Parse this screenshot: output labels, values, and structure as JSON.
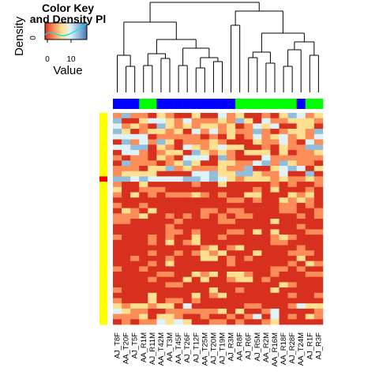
{
  "chart_data": {
    "type": "heatmap",
    "title": "",
    "color_key": {
      "title_line1": "Color Key",
      "title_line2": "and Density Pl",
      "xlabel": "Value",
      "ylabel": "Density",
      "x_ticks": [
        "0",
        "10"
      ],
      "y_ticks": [
        "0"
      ],
      "range": [
        0,
        16
      ],
      "palette": [
        "#d7301f",
        "#fc8d59",
        "#fee090",
        "#e0f3f8",
        "#91bfdb",
        "#4575b4"
      ]
    },
    "column_labels": [
      "AJ_T8F",
      "AA_T20F",
      "AJ_T5F",
      "AA_R1M",
      "AJ_R11M",
      "AA_T42M",
      "AA_T3M",
      "AA_T45F",
      "AJ_T26F",
      "AJ_T12F",
      "AA_T25M",
      "AJ_T20M",
      "AJ_T19M",
      "AJ_R3M",
      "AA_R8F",
      "AJ_R6F",
      "AJ_R5M",
      "AA_R2M",
      "AA_R16M",
      "AA_R18F",
      "AJ_R28F",
      "AA_T24M",
      "AJ_R1F",
      "AJ_R3F"
    ],
    "column_groups": [
      "blue",
      "blue",
      "blue",
      "green",
      "green",
      "blue",
      "blue",
      "blue",
      "blue",
      "blue",
      "blue",
      "blue",
      "blue",
      "blue",
      "green",
      "green",
      "green",
      "green",
      "green",
      "green",
      "green",
      "blue",
      "green",
      "green"
    ],
    "row_count": 40,
    "row_groups_note": "all rows yellow except row 12 red",
    "group_colors": {
      "blue": "#0000ff",
      "green": "#00ff00",
      "yellow": "#ffff00",
      "red": "#ff0000"
    }
  }
}
